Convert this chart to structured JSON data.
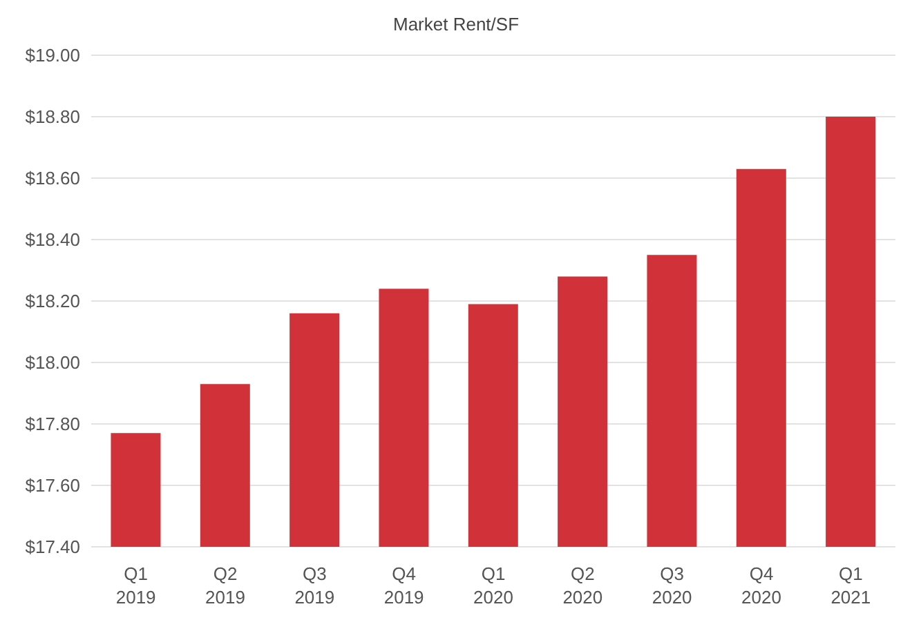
{
  "chart_data": {
    "type": "bar",
    "title": "Market Rent/SF",
    "categories": [
      "Q1 2019",
      "Q2 2019",
      "Q3 2019",
      "Q4 2019",
      "Q1 2020",
      "Q2 2020",
      "Q3 2020",
      "Q4 2020",
      "Q1 2021"
    ],
    "values": [
      17.77,
      17.93,
      18.16,
      18.24,
      18.19,
      18.28,
      18.35,
      18.63,
      18.8
    ],
    "color": "#d13239",
    "ylim": [
      17.4,
      19.0
    ],
    "yticks": [
      {
        "value": 17.4,
        "label": "$17.40"
      },
      {
        "value": 17.6,
        "label": "$17.60"
      },
      {
        "value": 17.8,
        "label": "$17.80"
      },
      {
        "value": 18.0,
        "label": "$18.00"
      },
      {
        "value": 18.2,
        "label": "$18.20"
      },
      {
        "value": 18.4,
        "label": "$18.40"
      },
      {
        "value": 18.6,
        "label": "$18.60"
      },
      {
        "value": 18.8,
        "label": "$18.80"
      },
      {
        "value": 19.0,
        "label": "$19.00"
      }
    ],
    "grid": "y"
  }
}
